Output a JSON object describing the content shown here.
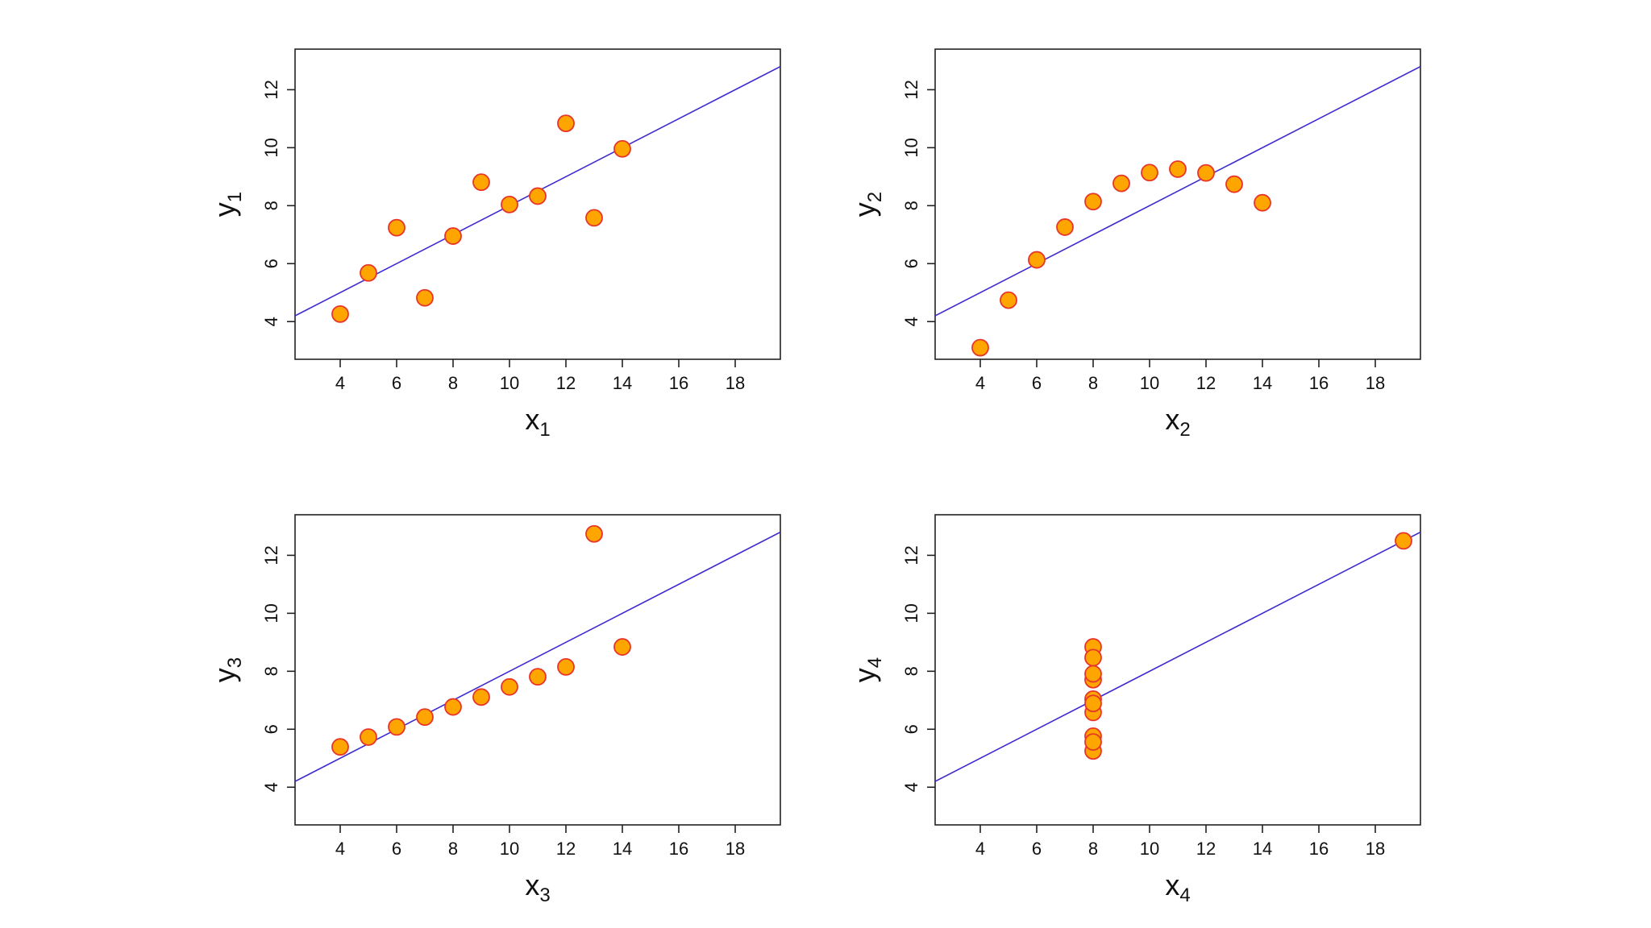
{
  "chart_data": [
    {
      "type": "scatter",
      "xlabel": "x",
      "xlabel_sub": "1",
      "ylabel": "y",
      "ylabel_sub": "1",
      "xlim": [
        2.4,
        19.6
      ],
      "ylim": [
        2.7,
        13.4
      ],
      "xticks": [
        4,
        6,
        8,
        10,
        12,
        14,
        16,
        18
      ],
      "yticks": [
        4,
        6,
        8,
        10,
        12
      ],
      "grid": false,
      "series": [
        {
          "x": [
            10,
            8,
            13,
            9,
            11,
            14,
            6,
            4,
            12,
            7,
            5
          ],
          "y": [
            8.04,
            6.95,
            7.58,
            8.81,
            8.33,
            9.96,
            7.24,
            4.26,
            10.84,
            4.82,
            5.68
          ]
        }
      ],
      "fit_line": {
        "intercept": 3.0,
        "slope": 0.5
      }
    },
    {
      "type": "scatter",
      "xlabel": "x",
      "xlabel_sub": "2",
      "ylabel": "y",
      "ylabel_sub": "2",
      "xlim": [
        2.4,
        19.6
      ],
      "ylim": [
        2.7,
        13.4
      ],
      "xticks": [
        4,
        6,
        8,
        10,
        12,
        14,
        16,
        18
      ],
      "yticks": [
        4,
        6,
        8,
        10,
        12
      ],
      "grid": false,
      "series": [
        {
          "x": [
            10,
            8,
            13,
            9,
            11,
            14,
            6,
            4,
            12,
            7,
            5
          ],
          "y": [
            9.14,
            8.14,
            8.74,
            8.77,
            9.26,
            8.1,
            6.13,
            3.1,
            9.13,
            7.26,
            4.74
          ]
        }
      ],
      "fit_line": {
        "intercept": 3.0,
        "slope": 0.5
      }
    },
    {
      "type": "scatter",
      "xlabel": "x",
      "xlabel_sub": "3",
      "ylabel": "y",
      "ylabel_sub": "3",
      "xlim": [
        2.4,
        19.6
      ],
      "ylim": [
        2.7,
        13.4
      ],
      "xticks": [
        4,
        6,
        8,
        10,
        12,
        14,
        16,
        18
      ],
      "yticks": [
        4,
        6,
        8,
        10,
        12
      ],
      "grid": false,
      "series": [
        {
          "x": [
            10,
            8,
            13,
            9,
            11,
            14,
            6,
            4,
            12,
            7,
            5
          ],
          "y": [
            7.46,
            6.77,
            12.74,
            7.11,
            7.81,
            8.84,
            6.08,
            5.39,
            8.15,
            6.42,
            5.73
          ]
        }
      ],
      "fit_line": {
        "intercept": 3.0,
        "slope": 0.5
      }
    },
    {
      "type": "scatter",
      "xlabel": "x",
      "xlabel_sub": "4",
      "ylabel": "y",
      "ylabel_sub": "4",
      "xlim": [
        2.4,
        19.6
      ],
      "ylim": [
        2.7,
        13.4
      ],
      "xticks": [
        4,
        6,
        8,
        10,
        12,
        14,
        16,
        18
      ],
      "yticks": [
        4,
        6,
        8,
        10,
        12
      ],
      "grid": false,
      "series": [
        {
          "x": [
            8,
            8,
            8,
            8,
            8,
            8,
            8,
            19,
            8,
            8,
            8
          ],
          "y": [
            6.58,
            5.76,
            7.71,
            8.84,
            8.47,
            7.04,
            5.25,
            12.5,
            5.56,
            7.91,
            6.89
          ]
        }
      ],
      "fit_line": {
        "intercept": 3.0,
        "slope": 0.5
      }
    }
  ],
  "colors": {
    "point_fill": "#FFA500",
    "point_stroke": "#E8352A",
    "fit_line": "#3D2BD1",
    "frame": "#222222"
  }
}
